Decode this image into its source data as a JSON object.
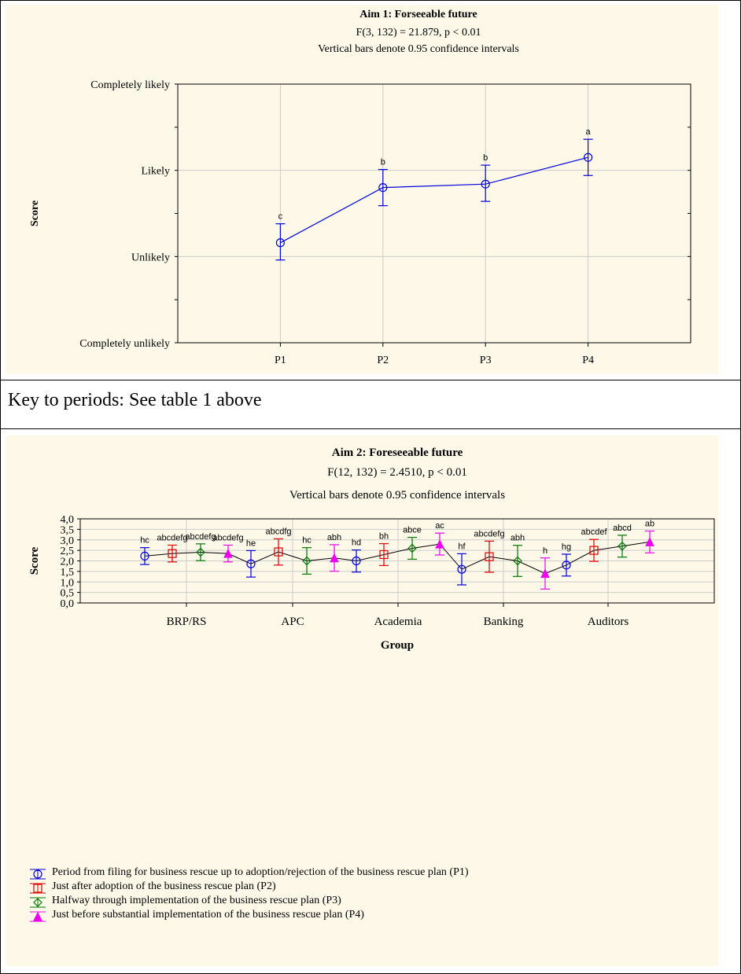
{
  "key_text": "Key to periods: See table 1 above",
  "chart_data": [
    {
      "type": "line",
      "title": "Aim 1: Forseeable future",
      "subtitle": "F(3, 132) = 21.879, p < 0.01",
      "note": "Vertical bars denote 0.95 confidence intervals",
      "ylabel": "Score",
      "xlabel": "",
      "categories": [
        "P1",
        "P2",
        "P3",
        "P4"
      ],
      "yticks": [
        "Completely unlikely",
        "Unlikely",
        "Likely",
        "Completely likely"
      ],
      "ylim": [
        1,
        4
      ],
      "grid": true,
      "series": [
        {
          "color": "#0000dd",
          "marker": "circle",
          "values": [
            2.16,
            2.8,
            2.84,
            3.15
          ],
          "ci_low": [
            1.96,
            2.59,
            2.64,
            2.94
          ],
          "ci_high": [
            2.38,
            3.01,
            3.06,
            3.36
          ],
          "labels": [
            "c",
            "b",
            "b",
            "a"
          ]
        }
      ]
    },
    {
      "type": "line",
      "title": "Aim 2: Foreseeable future",
      "subtitle": "F(12, 132) = 2.4510, p < 0.01",
      "note": "Vertical bars denote 0.95 confidence intervals",
      "ylabel": "Score",
      "xlabel": "Group",
      "categories": [
        "BRP/RS",
        "APC",
        "Academia",
        "Banking",
        "Auditors"
      ],
      "yticks": [
        "0,0",
        "0,5",
        "1,0",
        "1,5",
        "2,0",
        "2,5",
        "3,0",
        "3,5",
        "4,0"
      ],
      "ylim": [
        0,
        4
      ],
      "grid": true,
      "legend_position": "bottom",
      "series": [
        {
          "name": "Period from filing for business rescue up to adoption/rejection of the business rescue plan (P1)",
          "color": "#0000dd",
          "marker": "circle",
          "values": [
            2.23,
            1.86,
            2.0,
            1.6,
            1.8
          ],
          "ci_low": [
            1.83,
            1.23,
            1.47,
            0.86,
            1.28
          ],
          "ci_high": [
            2.63,
            2.49,
            2.52,
            2.34,
            2.32
          ],
          "labels": [
            "hc",
            "he",
            "hd",
            "hf",
            "hg"
          ]
        },
        {
          "name": "Just after adoption of the business rescue plan (P2)",
          "color": "#dd0000",
          "marker": "square",
          "values": [
            2.35,
            2.43,
            2.3,
            2.2,
            2.5
          ],
          "ci_low": [
            1.95,
            1.8,
            1.78,
            1.46,
            1.98
          ],
          "ci_high": [
            2.75,
            3.05,
            2.82,
            2.94,
            3.02
          ],
          "labels": [
            "abcdefg",
            "abcdfg",
            "bh",
            "abcdefg",
            "abcdef"
          ]
        },
        {
          "name": "Halfway through implementation of the business rescue plan (P3)",
          "color": "#007700",
          "marker": "diamond",
          "values": [
            2.41,
            2.0,
            2.6,
            2.0,
            2.7
          ],
          "ci_low": [
            2.01,
            1.37,
            2.08,
            1.26,
            2.18
          ],
          "ci_high": [
            2.81,
            2.63,
            3.12,
            2.74,
            3.22
          ],
          "labels": [
            "abcdefg",
            "hc",
            "abce",
            "abh",
            "abcd"
          ]
        },
        {
          "name": "Just before substantial implementation of the business rescue plan (P4)",
          "color": "#ee00ee",
          "marker": "triangle",
          "values": [
            2.35,
            2.14,
            2.8,
            1.4,
            2.9
          ],
          "ci_low": [
            1.95,
            1.51,
            2.28,
            0.66,
            2.38
          ],
          "ci_high": [
            2.75,
            2.77,
            3.32,
            2.14,
            3.42
          ],
          "labels": [
            "abcdefg",
            "abh",
            "ac",
            "h",
            "ab"
          ]
        }
      ]
    }
  ]
}
